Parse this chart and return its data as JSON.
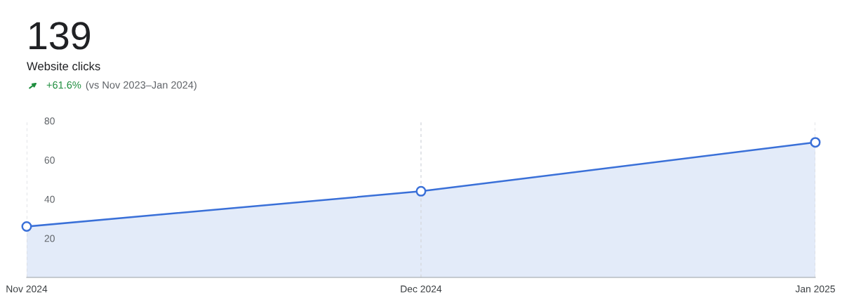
{
  "chart_data": {
    "type": "area",
    "title": "139",
    "subtitle": "Website clicks",
    "annotations": [
      "+61.6%",
      "(vs Nov 2023–Jan 2024)"
    ],
    "categories": [
      "Nov 2024",
      "Dec 2024",
      "Jan 2025"
    ],
    "series": [
      {
        "color": "#3a70d8",
        "values": [
          26,
          44,
          69
        ]
      }
    ],
    "ylim": [
      0,
      80
    ],
    "yticks": [
      20,
      40,
      60,
      80
    ],
    "grid": "x",
    "marker": "circle",
    "line_style": "solid",
    "legend": false
  }
}
